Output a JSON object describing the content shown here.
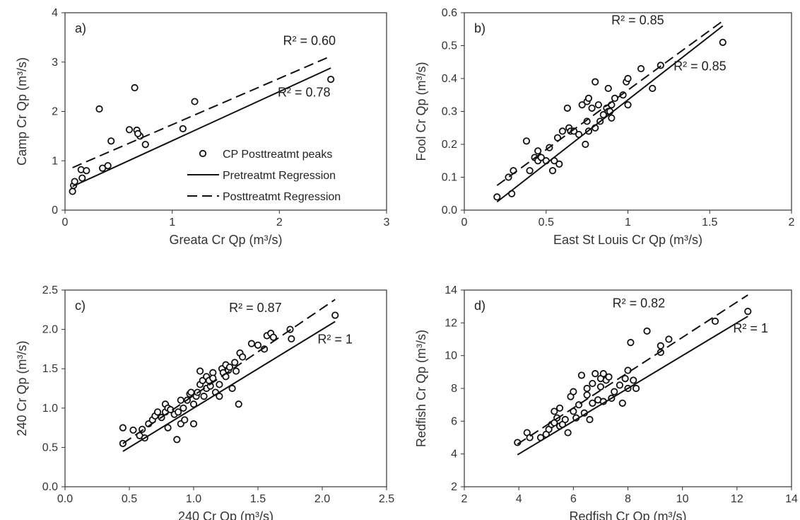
{
  "chart_data": [
    {
      "type": "scatter",
      "panel_label": "a)",
      "xlabel": "Greata Cr  Qp (m³/s)",
      "ylabel": "Camp Cr Qp (m³/s)",
      "xlim": [
        0,
        3
      ],
      "ylim": [
        0,
        4
      ],
      "xticks": [
        0,
        1,
        2,
        3
      ],
      "yticks": [
        0,
        1,
        2,
        3,
        4
      ],
      "tick_decimals": 0,
      "grid": false,
      "series": [
        {
          "kind": "points",
          "x": [
            0.07,
            0.08,
            0.09,
            0.15,
            0.16,
            0.2,
            0.32,
            0.35,
            0.4,
            0.43,
            0.6,
            0.65,
            0.67,
            0.7,
            0.68,
            0.75,
            1.1,
            1.21,
            2.48
          ],
          "y": [
            0.38,
            0.5,
            0.58,
            0.82,
            0.65,
            0.8,
            2.05,
            0.85,
            0.9,
            1.4,
            1.63,
            2.48,
            1.62,
            1.5,
            1.55,
            1.33,
            1.65,
            2.2,
            2.65
          ]
        },
        {
          "kind": "line",
          "style": "solid",
          "x": [
            0.07,
            2.48
          ],
          "y": [
            0.48,
            2.88
          ]
        },
        {
          "kind": "line",
          "style": "dashed",
          "x": [
            0.07,
            2.48
          ],
          "y": [
            0.86,
            3.12
          ]
        }
      ],
      "annotations": [
        {
          "text": "R² = 0.60",
          "x": 2.28,
          "y": 3.35
        },
        {
          "text": "R² = 0.78",
          "x": 2.23,
          "y": 2.3
        }
      ],
      "legend": {
        "position": "bottom-right",
        "entries": [
          "CP Posttreatmt peaks",
          "Pretreatmt Regression",
          "Posttreatmt Regression"
        ]
      }
    },
    {
      "type": "scatter",
      "panel_label": "b)",
      "xlabel": "East St Louis Cr Qp (m³/s)",
      "ylabel": "Fool Cr Qp (m³/s)",
      "xlim": [
        0,
        2
      ],
      "ylim": [
        0,
        0.6
      ],
      "xticks": [
        0,
        0.5,
        1,
        1.5,
        2
      ],
      "yticks": [
        0,
        0.1,
        0.2,
        0.3,
        0.4,
        0.5,
        0.6
      ],
      "tick_decimals": 1,
      "grid": false,
      "series": [
        {
          "kind": "points",
          "x": [
            0.2,
            0.27,
            0.29,
            0.3,
            0.38,
            0.4,
            0.43,
            0.45,
            0.45,
            0.47,
            0.5,
            0.52,
            0.54,
            0.55,
            0.57,
            0.58,
            0.6,
            0.63,
            0.64,
            0.65,
            0.67,
            0.7,
            0.72,
            0.74,
            0.75,
            0.75,
            0.76,
            0.76,
            0.78,
            0.8,
            0.8,
            0.82,
            0.83,
            0.85,
            0.87,
            0.88,
            0.88,
            0.89,
            0.9,
            0.9,
            0.92,
            0.97,
            0.99,
            1.0,
            1.0,
            1.08,
            1.15,
            1.2,
            1.58
          ],
          "y": [
            0.04,
            0.1,
            0.05,
            0.12,
            0.21,
            0.12,
            0.16,
            0.18,
            0.15,
            0.16,
            0.15,
            0.19,
            0.12,
            0.15,
            0.22,
            0.14,
            0.24,
            0.31,
            0.25,
            0.24,
            0.24,
            0.23,
            0.32,
            0.2,
            0.27,
            0.33,
            0.24,
            0.34,
            0.31,
            0.39,
            0.25,
            0.32,
            0.27,
            0.29,
            0.31,
            0.3,
            0.37,
            0.3,
            0.28,
            0.32,
            0.34,
            0.35,
            0.39,
            0.4,
            0.32,
            0.43,
            0.37,
            0.44,
            0.51
          ]
        },
        {
          "kind": "line",
          "style": "solid",
          "x": [
            0.2,
            1.58
          ],
          "y": [
            0.025,
            0.56
          ]
        },
        {
          "kind": "line",
          "style": "dashed",
          "x": [
            0.2,
            1.58
          ],
          "y": [
            0.075,
            0.575
          ]
        }
      ],
      "annotations": [
        {
          "text": "R² = 0.85",
          "x": 1.06,
          "y": 0.565
        },
        {
          "text": "R² = 0.85",
          "x": 1.44,
          "y": 0.425
        }
      ]
    },
    {
      "type": "scatter",
      "panel_label": "c)",
      "xlabel": "240 Cr Qp (m³/s)",
      "ylabel": "240 Cr Qp (m³/s)",
      "xlim": [
        0,
        2.5
      ],
      "ylim": [
        0,
        2.5
      ],
      "xticks": [
        0,
        0.5,
        1,
        1.5,
        2,
        2.5
      ],
      "yticks": [
        0,
        0.5,
        1,
        1.5,
        2,
        2.5
      ],
      "tick_decimals": 1,
      "grid": false,
      "series": [
        {
          "kind": "points",
          "x": [
            0.45,
            0.45,
            0.53,
            0.58,
            0.6,
            0.62,
            0.65,
            0.68,
            0.7,
            0.72,
            0.75,
            0.78,
            0.78,
            0.8,
            0.8,
            0.82,
            0.85,
            0.87,
            0.88,
            0.9,
            0.9,
            0.92,
            0.93,
            0.95,
            0.97,
            0.98,
            1.0,
            1.0,
            1.02,
            1.03,
            1.05,
            1.05,
            1.07,
            1.08,
            1.1,
            1.1,
            1.12,
            1.13,
            1.15,
            1.15,
            1.17,
            1.2,
            1.2,
            1.22,
            1.23,
            1.25,
            1.25,
            1.27,
            1.28,
            1.3,
            1.32,
            1.33,
            1.35,
            1.36,
            1.38,
            1.45,
            1.5,
            1.55,
            1.57,
            1.6,
            1.62,
            1.75,
            1.76,
            2.1
          ],
          "y": [
            0.75,
            0.55,
            0.72,
            0.65,
            0.73,
            0.62,
            0.8,
            0.85,
            0.9,
            0.95,
            0.88,
            1.05,
            0.95,
            1.0,
            0.75,
            0.98,
            0.92,
            0.6,
            0.95,
            1.1,
            0.8,
            1.0,
            0.85,
            1.1,
            1.18,
            1.2,
            0.8,
            1.05,
            1.15,
            1.2,
            1.3,
            1.47,
            1.35,
            1.15,
            1.25,
            1.4,
            1.35,
            1.28,
            1.45,
            1.38,
            1.2,
            1.3,
            1.15,
            1.5,
            1.45,
            1.55,
            1.4,
            1.48,
            1.52,
            1.25,
            1.58,
            1.47,
            1.05,
            1.7,
            1.65,
            1.82,
            1.8,
            1.75,
            1.92,
            1.95,
            1.9,
            2.0,
            1.88,
            2.18
          ]
        },
        {
          "kind": "line",
          "style": "solid",
          "x": [
            0.45,
            2.1
          ],
          "y": [
            0.45,
            2.1
          ]
        },
        {
          "kind": "line",
          "style": "dashed",
          "x": [
            0.45,
            2.1
          ],
          "y": [
            0.55,
            2.38
          ]
        }
      ],
      "annotations": [
        {
          "text": "R² = 0.87",
          "x": 1.48,
          "y": 2.22
        },
        {
          "text": "R² = 1",
          "x": 2.1,
          "y": 1.82
        }
      ]
    },
    {
      "type": "scatter",
      "panel_label": "d)",
      "xlabel": "Redfish Cr Qp (m³/s)",
      "ylabel": "Redfish Cr Qp (m³/s)",
      "xlim": [
        2,
        14
      ],
      "ylim": [
        2,
        14
      ],
      "xticks": [
        2,
        4,
        6,
        8,
        10,
        12,
        14
      ],
      "yticks": [
        2,
        4,
        6,
        8,
        10,
        12,
        14
      ],
      "tick_decimals": 0,
      "grid": false,
      "series": [
        {
          "kind": "points",
          "x": [
            3.95,
            4.3,
            4.4,
            4.8,
            5.0,
            5.1,
            5.2,
            5.3,
            5.3,
            5.4,
            5.5,
            5.5,
            5.6,
            5.7,
            5.8,
            5.9,
            6.0,
            6.0,
            6.1,
            6.2,
            6.3,
            6.4,
            6.5,
            6.5,
            6.6,
            6.7,
            6.7,
            6.8,
            6.9,
            7.0,
            7.0,
            7.1,
            7.1,
            7.2,
            7.3,
            7.4,
            7.5,
            7.7,
            7.8,
            7.9,
            8.0,
            8.0,
            8.1,
            8.2,
            8.3,
            8.7,
            9.2,
            9.2,
            9.5,
            11.2,
            12.4
          ],
          "y": [
            4.7,
            5.3,
            5.0,
            5.0,
            5.2,
            5.5,
            5.8,
            6.6,
            5.9,
            6.2,
            5.7,
            6.8,
            5.8,
            6.1,
            5.3,
            7.5,
            6.6,
            7.8,
            6.2,
            7.0,
            8.8,
            6.5,
            7.6,
            8.0,
            6.1,
            8.3,
            7.1,
            8.9,
            7.3,
            8.1,
            8.6,
            7.2,
            8.9,
            8.5,
            8.7,
            7.4,
            7.8,
            8.2,
            7.1,
            8.6,
            9.1,
            8.0,
            10.8,
            8.5,
            8.0,
            11.5,
            10.2,
            10.6,
            11.0,
            12.1,
            12.7
          ]
        },
        {
          "kind": "line",
          "style": "solid",
          "x": [
            3.95,
            12.4
          ],
          "y": [
            3.95,
            12.4
          ]
        },
        {
          "kind": "line",
          "style": "dashed",
          "x": [
            3.95,
            12.4
          ],
          "y": [
            4.6,
            13.7
          ]
        }
      ],
      "annotations": [
        {
          "text": "R² = 0.82",
          "x": 8.4,
          "y": 12.95
        },
        {
          "text": "R² = 1",
          "x": 12.5,
          "y": 11.4
        }
      ]
    }
  ]
}
